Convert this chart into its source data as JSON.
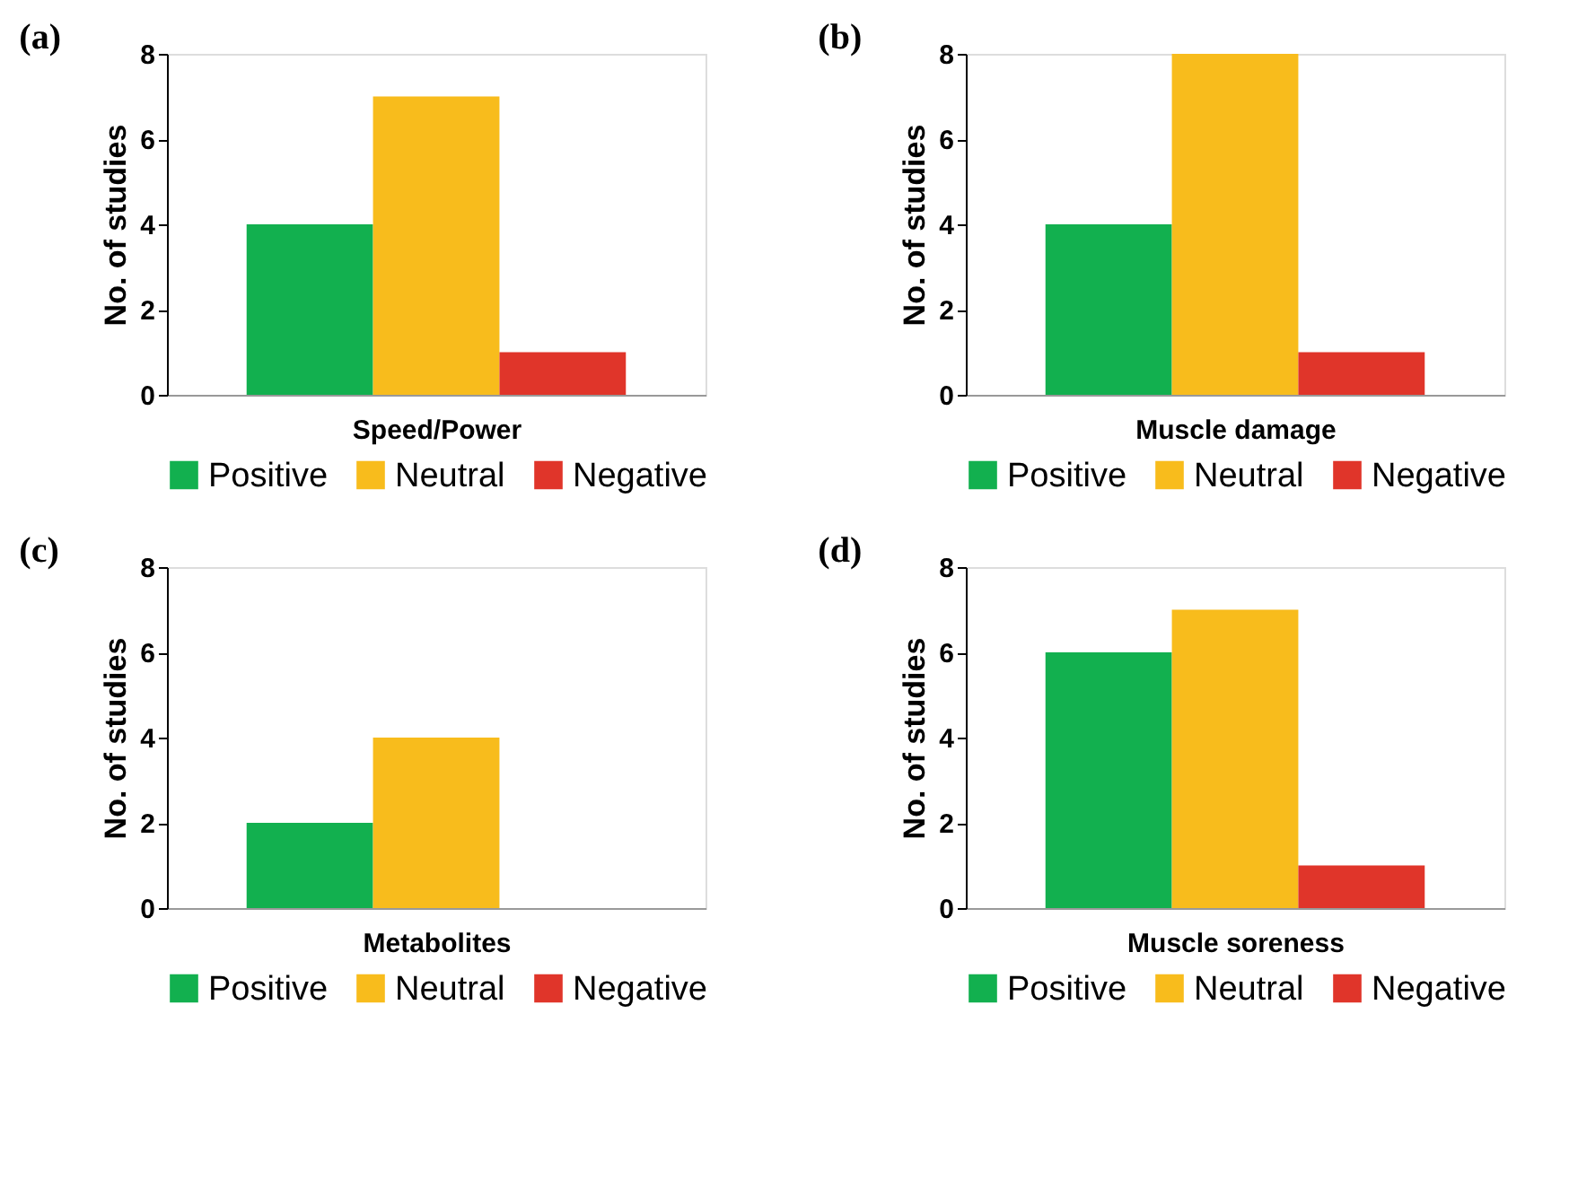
{
  "chart_data": [
    {
      "type": "bar",
      "title": "(a)",
      "xlabel": "Speed/Power",
      "ylabel": "No. of studies",
      "categories": [
        null,
        null,
        null
      ],
      "ylim": [
        0,
        8
      ],
      "yticks": [
        0,
        2,
        4,
        6,
        8
      ],
      "grid": false,
      "legend": "bottom",
      "series": [
        {
          "name": "Positive",
          "color": "#12b04f",
          "values": [
            4,
            null,
            null
          ]
        },
        {
          "name": "Neutral",
          "color": "#f8bc1c",
          "values": [
            null,
            7,
            null
          ]
        },
        {
          "name": "Negative",
          "color": "#e0352a",
          "values": [
            null,
            null,
            1
          ]
        }
      ]
    },
    {
      "type": "bar",
      "title": "(b)",
      "xlabel": "Muscle damage",
      "ylabel": "No. of studies",
      "categories": [
        null,
        null,
        null
      ],
      "ylim": [
        0,
        8
      ],
      "yticks": [
        0,
        2,
        4,
        6,
        8
      ],
      "grid": false,
      "legend": "bottom",
      "series": [
        {
          "name": "Positive",
          "color": "#12b04f",
          "values": [
            4,
            null,
            null
          ]
        },
        {
          "name": "Neutral",
          "color": "#f8bc1c",
          "values": [
            null,
            8,
            null
          ]
        },
        {
          "name": "Negative",
          "color": "#e0352a",
          "values": [
            null,
            null,
            1
          ]
        }
      ]
    },
    {
      "type": "bar",
      "title": "(c)",
      "xlabel": "Metabolites",
      "ylabel": "No. of studies",
      "categories": [
        null,
        null,
        null
      ],
      "ylim": [
        0,
        8
      ],
      "yticks": [
        0,
        2,
        4,
        6,
        8
      ],
      "grid": false,
      "legend": "bottom",
      "series": [
        {
          "name": "Positive",
          "color": "#12b04f",
          "values": [
            2,
            null,
            null
          ]
        },
        {
          "name": "Neutral",
          "color": "#f8bc1c",
          "values": [
            null,
            4,
            null
          ]
        },
        {
          "name": "Negative",
          "color": "#e0352a",
          "values": [
            null,
            null,
            0
          ]
        }
      ]
    },
    {
      "type": "bar",
      "title": "(d)",
      "xlabel": "Muscle soreness",
      "ylabel": "No. of studies",
      "categories": [
        null,
        null,
        null
      ],
      "ylim": [
        0,
        8
      ],
      "yticks": [
        0,
        2,
        4,
        6,
        8
      ],
      "grid": false,
      "legend": "bottom",
      "series": [
        {
          "name": "Positive",
          "color": "#12b04f",
          "values": [
            6,
            null,
            null
          ]
        },
        {
          "name": "Neutral",
          "color": "#f8bc1c",
          "values": [
            null,
            7,
            null
          ]
        },
        {
          "name": "Negative",
          "color": "#e0352a",
          "values": [
            null,
            null,
            1
          ]
        }
      ]
    }
  ]
}
